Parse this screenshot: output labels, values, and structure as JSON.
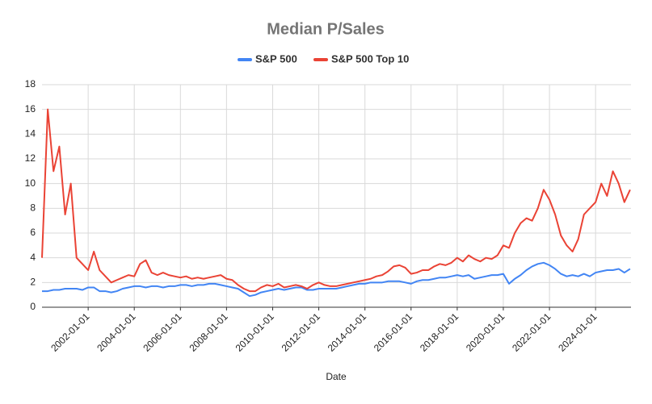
{
  "chart_data": {
    "type": "line",
    "title": "Median P/Sales",
    "x_label": "Date",
    "x": [
      "2000-01-01",
      "2000-04-01",
      "2000-07-01",
      "2000-10-01",
      "2001-01-01",
      "2001-04-01",
      "2001-07-01",
      "2001-10-01",
      "2002-01-01",
      "2002-04-01",
      "2002-07-01",
      "2002-10-01",
      "2003-01-01",
      "2003-04-01",
      "2003-07-01",
      "2003-10-01",
      "2004-01-01",
      "2004-04-01",
      "2004-07-01",
      "2004-10-01",
      "2005-01-01",
      "2005-04-01",
      "2005-07-01",
      "2005-10-01",
      "2006-01-01",
      "2006-04-01",
      "2006-07-01",
      "2006-10-01",
      "2007-01-01",
      "2007-04-01",
      "2007-07-01",
      "2007-10-01",
      "2008-01-01",
      "2008-04-01",
      "2008-07-01",
      "2008-10-01",
      "2009-01-01",
      "2009-04-01",
      "2009-07-01",
      "2009-10-01",
      "2010-01-01",
      "2010-04-01",
      "2010-07-01",
      "2010-10-01",
      "2011-01-01",
      "2011-04-01",
      "2011-07-01",
      "2011-10-01",
      "2012-01-01",
      "2012-04-01",
      "2012-07-01",
      "2012-10-01",
      "2013-01-01",
      "2013-04-01",
      "2013-07-01",
      "2013-10-01",
      "2014-01-01",
      "2014-04-01",
      "2014-07-01",
      "2014-10-01",
      "2015-01-01",
      "2015-04-01",
      "2015-07-01",
      "2015-10-01",
      "2016-01-01",
      "2016-04-01",
      "2016-07-01",
      "2016-10-01",
      "2017-01-01",
      "2017-04-01",
      "2017-07-01",
      "2017-10-01",
      "2018-01-01",
      "2018-04-01",
      "2018-07-01",
      "2018-10-01",
      "2019-01-01",
      "2019-04-01",
      "2019-07-01",
      "2019-10-01",
      "2020-01-01",
      "2020-04-01",
      "2020-07-01",
      "2020-10-01",
      "2021-01-01",
      "2021-04-01",
      "2021-07-01",
      "2021-10-01",
      "2022-01-01",
      "2022-04-01",
      "2022-07-01",
      "2022-10-01",
      "2023-01-01",
      "2023-04-01",
      "2023-07-01",
      "2023-10-01",
      "2024-01-01",
      "2024-04-01",
      "2024-07-01",
      "2024-10-01",
      "2025-01-01",
      "2025-04-01",
      "2025-07-01"
    ],
    "series": [
      {
        "name": "S&P 500",
        "color": "#4285f4",
        "values": [
          1.3,
          1.3,
          1.4,
          1.4,
          1.5,
          1.5,
          1.5,
          1.4,
          1.6,
          1.6,
          1.3,
          1.3,
          1.2,
          1.3,
          1.5,
          1.6,
          1.7,
          1.7,
          1.6,
          1.7,
          1.7,
          1.6,
          1.7,
          1.7,
          1.8,
          1.8,
          1.7,
          1.8,
          1.8,
          1.9,
          1.9,
          1.8,
          1.7,
          1.6,
          1.5,
          1.2,
          0.9,
          1.0,
          1.2,
          1.3,
          1.4,
          1.5,
          1.4,
          1.5,
          1.6,
          1.6,
          1.4,
          1.4,
          1.5,
          1.5,
          1.5,
          1.5,
          1.6,
          1.7,
          1.8,
          1.9,
          1.9,
          2.0,
          2.0,
          2.0,
          2.1,
          2.1,
          2.1,
          2.0,
          1.9,
          2.1,
          2.2,
          2.2,
          2.3,
          2.4,
          2.4,
          2.5,
          2.6,
          2.5,
          2.6,
          2.3,
          2.4,
          2.5,
          2.6,
          2.6,
          2.7,
          1.9,
          2.3,
          2.6,
          3.0,
          3.3,
          3.5,
          3.6,
          3.4,
          3.1,
          2.7,
          2.5,
          2.6,
          2.5,
          2.7,
          2.5,
          2.8,
          2.9,
          3.0,
          3.0,
          3.1,
          2.8,
          3.1
        ]
      },
      {
        "name": "S&P 500 Top 10",
        "color": "#ea4335",
        "values": [
          4.0,
          16.0,
          11.0,
          13.0,
          7.5,
          10.0,
          4.0,
          3.5,
          3.0,
          4.5,
          3.0,
          2.5,
          2.0,
          2.2,
          2.4,
          2.6,
          2.5,
          3.5,
          3.8,
          2.8,
          2.6,
          2.8,
          2.6,
          2.5,
          2.4,
          2.5,
          2.3,
          2.4,
          2.3,
          2.4,
          2.5,
          2.6,
          2.3,
          2.2,
          1.8,
          1.5,
          1.3,
          1.3,
          1.6,
          1.8,
          1.7,
          1.9,
          1.6,
          1.7,
          1.8,
          1.7,
          1.5,
          1.8,
          2.0,
          1.8,
          1.7,
          1.7,
          1.8,
          1.9,
          2.0,
          2.1,
          2.2,
          2.3,
          2.5,
          2.6,
          2.9,
          3.3,
          3.4,
          3.2,
          2.7,
          2.8,
          3.0,
          3.0,
          3.3,
          3.5,
          3.4,
          3.6,
          4.0,
          3.7,
          4.2,
          3.9,
          3.7,
          4.0,
          3.9,
          4.2,
          5.0,
          4.8,
          6.0,
          6.8,
          7.2,
          7.0,
          8.0,
          9.5,
          8.7,
          7.5,
          5.8,
          5.0,
          4.5,
          5.5,
          7.5,
          8.0,
          8.5,
          10.0,
          9.0,
          11.0,
          10.0,
          8.5,
          9.5
        ]
      }
    ],
    "xlim": [
      "2000-01-01",
      "2025-07-15"
    ],
    "xticks": [
      "2002-01-01",
      "2004-01-01",
      "2006-01-01",
      "2008-01-01",
      "2010-01-01",
      "2012-01-01",
      "2014-01-01",
      "2016-01-01",
      "2018-01-01",
      "2020-01-01",
      "2022-01-01",
      "2024-01-01"
    ],
    "ylim": [
      0,
      18
    ],
    "yticks": [
      0,
      2,
      4,
      6,
      8,
      10,
      12,
      14,
      16,
      18
    ],
    "grid": true,
    "legend": "top"
  }
}
